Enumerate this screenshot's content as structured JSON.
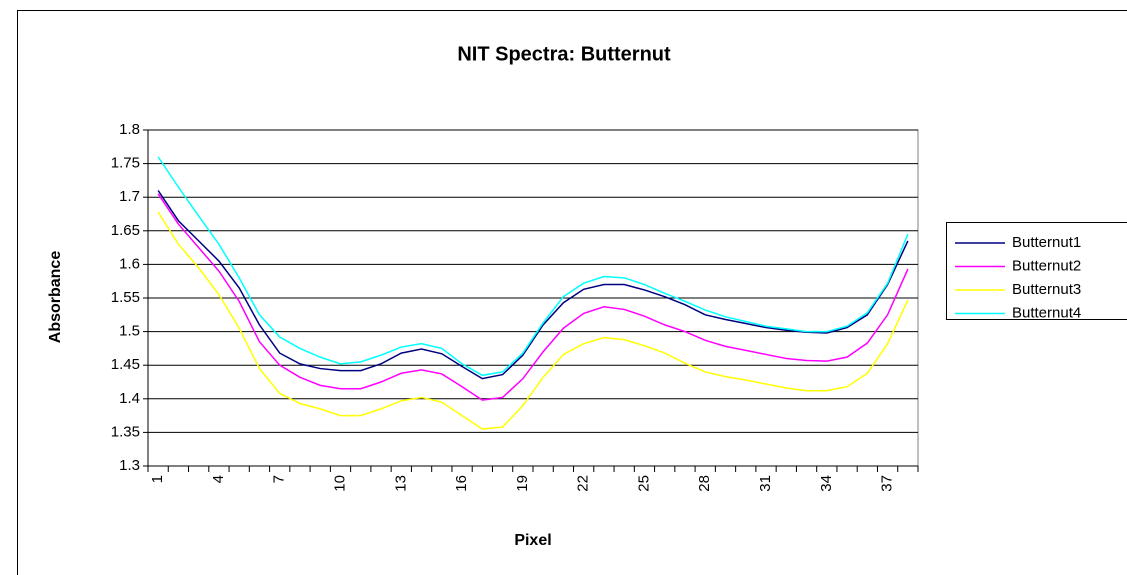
{
  "chart_data": {
    "type": "line",
    "title": "NIT Spectra: Butternut",
    "x_label": "Pixel",
    "y_label": "Absorbance",
    "categories": [
      1,
      null,
      null,
      4,
      null,
      null,
      7,
      null,
      null,
      10,
      null,
      null,
      13,
      null,
      null,
      16,
      null,
      null,
      19,
      null,
      null,
      22,
      null,
      null,
      25,
      null,
      null,
      28,
      null,
      null,
      31,
      null,
      null,
      34,
      null,
      null,
      37,
      null
    ],
    "ylim": [
      1.3,
      1.8
    ],
    "yticks": [
      1.3,
      1.35,
      1.4,
      1.45,
      1.5,
      1.55,
      1.6,
      1.65,
      1.7,
      1.75,
      1.8
    ],
    "grid": true,
    "legend": "right",
    "series": [
      {
        "name": "Butternut1",
        "color": "#000080",
        "values": [
          1.71,
          1.665,
          1.635,
          1.605,
          1.565,
          1.51,
          1.468,
          1.452,
          1.445,
          1.442,
          1.442,
          1.452,
          1.468,
          1.474,
          1.467,
          1.448,
          1.43,
          1.436,
          1.465,
          1.51,
          1.543,
          1.563,
          1.57,
          1.57,
          1.562,
          1.552,
          1.54,
          1.525,
          1.518,
          1.512,
          1.506,
          1.502,
          1.499,
          1.498,
          1.506,
          1.525,
          1.57,
          1.635
        ]
      },
      {
        "name": "Butternut2",
        "color": "#ff00ff",
        "values": [
          1.705,
          1.66,
          1.625,
          1.59,
          1.545,
          1.485,
          1.45,
          1.432,
          1.42,
          1.415,
          1.415,
          1.425,
          1.438,
          1.443,
          1.437,
          1.418,
          1.398,
          1.402,
          1.43,
          1.47,
          1.505,
          1.527,
          1.537,
          1.533,
          1.523,
          1.51,
          1.5,
          1.487,
          1.478,
          1.472,
          1.466,
          1.46,
          1.457,
          1.456,
          1.462,
          1.483,
          1.525,
          1.593
        ]
      },
      {
        "name": "Butternut3",
        "color": "#ffff00",
        "values": [
          1.678,
          1.63,
          1.595,
          1.555,
          1.505,
          1.445,
          1.408,
          1.393,
          1.385,
          1.375,
          1.375,
          1.385,
          1.397,
          1.402,
          1.395,
          1.375,
          1.355,
          1.358,
          1.39,
          1.432,
          1.466,
          1.482,
          1.491,
          1.488,
          1.479,
          1.468,
          1.453,
          1.44,
          1.433,
          1.428,
          1.422,
          1.416,
          1.412,
          1.412,
          1.418,
          1.438,
          1.482,
          1.547
        ]
      },
      {
        "name": "Butternut4",
        "color": "#00ffff",
        "values": [
          1.76,
          1.715,
          1.672,
          1.63,
          1.58,
          1.525,
          1.492,
          1.475,
          1.462,
          1.452,
          1.455,
          1.465,
          1.477,
          1.482,
          1.475,
          1.452,
          1.435,
          1.44,
          1.468,
          1.513,
          1.552,
          1.572,
          1.582,
          1.58,
          1.57,
          1.557,
          1.545,
          1.532,
          1.522,
          1.515,
          1.508,
          1.504,
          1.5,
          1.5,
          1.508,
          1.528,
          1.572,
          1.645
        ]
      }
    ]
  }
}
